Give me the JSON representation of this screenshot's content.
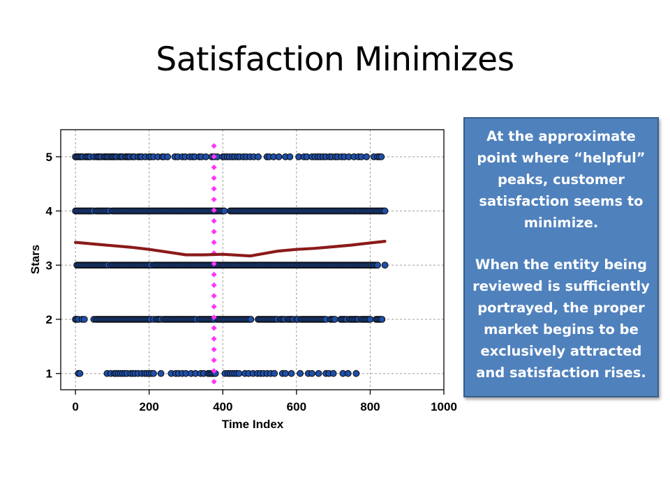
{
  "slide": {
    "title": "Satisfaction Minimizes",
    "callout": {
      "paragraph1": "At the approximate point where “helpful” peaks, customer satisfaction seems to minimize.",
      "paragraph2": "When the entity being reviewed is sufficiently portrayed, the proper market begins to be exclusively attracted and satisfaction rises."
    }
  },
  "colors": {
    "point_fill": "#1f4fa8",
    "point_stroke": "#0a0a0a",
    "smooth_line": "#8b1a1a",
    "marker_line": "#ff33ff",
    "grid": "#9a9a9a",
    "callout_bg": "#4f81bd"
  },
  "chart_data": {
    "type": "scatter",
    "title": "",
    "xlabel": "Time Index",
    "ylabel": "Stars",
    "xlim": [
      -40,
      1000
    ],
    "ylim": [
      0.7,
      5.5
    ],
    "x_ticks": [
      0,
      200,
      400,
      600,
      800,
      1000
    ],
    "y_ticks": [
      1,
      2,
      3,
      4,
      5
    ],
    "grid": true,
    "series": [
      {
        "y": 5,
        "x": [
          0,
          4,
          8,
          12,
          16,
          20,
          28,
          32,
          36,
          40,
          50,
          58,
          62,
          66,
          70,
          78,
          82,
          86,
          90,
          96,
          100,
          104,
          108,
          112,
          120,
          124,
          128,
          136,
          140,
          144,
          148,
          156,
          160,
          170,
          176,
          180,
          190,
          200,
          205,
          212,
          224,
          236,
          240,
          250,
          270,
          278,
          290,
          298,
          310,
          318,
          324,
          336,
          342,
          354,
          370,
          376,
          385,
          400,
          405,
          412,
          418,
          426,
          432,
          440,
          446,
          456,
          464,
          474,
          484,
          496,
          520,
          526,
          538,
          552,
          570,
          582,
          606,
          620,
          628,
          642,
          650,
          658,
          664,
          672,
          680,
          690,
          696,
          706,
          712,
          722,
          730,
          742,
          756,
          768,
          776,
          790,
          810,
          820,
          825,
          830
        ]
      },
      {
        "y": 4,
        "x": [
          0,
          4,
          8,
          12,
          16,
          20,
          24,
          28,
          32,
          36,
          40,
          44,
          48,
          56,
          60,
          64,
          68,
          72,
          76,
          80,
          84,
          88,
          92,
          100,
          104,
          108,
          112,
          116,
          120,
          124,
          128,
          132,
          136,
          140,
          144,
          148,
          152,
          156,
          160,
          164,
          168,
          172,
          176,
          180,
          184,
          188,
          192,
          196,
          200,
          204,
          208,
          212,
          216,
          220,
          224,
          228,
          232,
          236,
          240,
          244,
          248,
          252,
          256,
          260,
          264,
          268,
          272,
          276,
          280,
          284,
          288,
          292,
          296,
          300,
          304,
          308,
          312,
          316,
          320,
          324,
          328,
          332,
          336,
          340,
          344,
          348,
          352,
          356,
          360,
          364,
          368,
          372,
          376,
          380,
          384,
          388,
          392,
          396,
          400,
          404,
          420,
          424,
          428,
          432,
          436,
          440,
          444,
          448,
          452,
          456,
          460,
          464,
          468,
          472,
          476,
          480,
          484,
          488,
          492,
          496,
          500,
          504,
          508,
          512,
          516,
          520,
          524,
          528,
          532,
          536,
          540,
          544,
          548,
          552,
          556,
          560,
          564,
          568,
          572,
          576,
          580,
          584,
          588,
          592,
          596,
          600,
          604,
          608,
          612,
          616,
          620,
          624,
          628,
          632,
          636,
          640,
          644,
          648,
          652,
          656,
          660,
          664,
          668,
          672,
          676,
          680,
          684,
          688,
          692,
          696,
          700,
          704,
          708,
          712,
          716,
          720,
          724,
          728,
          732,
          736,
          740,
          744,
          748,
          752,
          756,
          760,
          764,
          768,
          772,
          776,
          780,
          784,
          788,
          792,
          796,
          800,
          804,
          808,
          812,
          816,
          820,
          824,
          828,
          832,
          836,
          840
        ]
      },
      {
        "y": 3,
        "x": [
          4,
          8,
          12,
          16,
          20,
          24,
          28,
          32,
          36,
          40,
          44,
          48,
          52,
          56,
          60,
          64,
          68,
          72,
          76,
          80,
          84,
          88,
          96,
          100,
          104,
          108,
          112,
          116,
          120,
          124,
          128,
          132,
          136,
          140,
          144,
          148,
          152,
          156,
          160,
          164,
          168,
          172,
          176,
          180,
          184,
          188,
          192,
          196,
          200,
          204,
          212,
          216,
          220,
          224,
          228,
          232,
          236,
          240,
          244,
          248,
          252,
          256,
          260,
          264,
          268,
          272,
          276,
          280,
          284,
          288,
          292,
          296,
          300,
          304,
          308,
          312,
          316,
          320,
          324,
          328,
          332,
          336,
          340,
          344,
          348,
          352,
          356,
          360,
          364,
          368,
          372,
          376,
          380,
          384,
          388,
          392,
          396,
          400,
          404,
          408,
          412,
          416,
          420,
          424,
          428,
          432,
          436,
          440,
          444,
          448,
          452,
          456,
          460,
          464,
          468,
          472,
          476,
          480,
          484,
          488,
          492,
          496,
          500,
          504,
          508,
          512,
          516,
          520,
          524,
          528,
          532,
          536,
          540,
          544,
          548,
          552,
          556,
          560,
          564,
          568,
          572,
          576,
          580,
          584,
          588,
          592,
          596,
          600,
          604,
          608,
          612,
          616,
          620,
          624,
          628,
          632,
          636,
          640,
          644,
          648,
          652,
          656,
          660,
          664,
          668,
          672,
          676,
          680,
          684,
          688,
          692,
          696,
          700,
          704,
          708,
          712,
          716,
          720,
          724,
          728,
          732,
          736,
          740,
          744,
          748,
          752,
          756,
          760,
          764,
          768,
          772,
          776,
          780,
          784,
          788,
          792,
          796,
          800,
          804,
          808,
          812,
          816,
          820,
          840
        ]
      },
      {
        "y": 2,
        "x": [
          0,
          4,
          8,
          18,
          24,
          50,
          56,
          60,
          64,
          68,
          72,
          76,
          80,
          84,
          88,
          92,
          96,
          100,
          104,
          108,
          112,
          116,
          120,
          124,
          128,
          132,
          136,
          140,
          144,
          148,
          152,
          156,
          160,
          164,
          168,
          172,
          176,
          180,
          184,
          188,
          192,
          196,
          200,
          204,
          212,
          220,
          224,
          228,
          232,
          240,
          244,
          248,
          252,
          256,
          260,
          264,
          268,
          272,
          276,
          280,
          284,
          288,
          292,
          296,
          300,
          304,
          308,
          312,
          316,
          320,
          324,
          328,
          336,
          340,
          344,
          348,
          352,
          356,
          360,
          364,
          368,
          372,
          376,
          384,
          388,
          392,
          396,
          400,
          404,
          408,
          412,
          416,
          420,
          424,
          428,
          432,
          436,
          440,
          444,
          448,
          452,
          456,
          460,
          464,
          468,
          472,
          476,
          496,
          500,
          504,
          508,
          512,
          516,
          520,
          524,
          528,
          532,
          536,
          540,
          544,
          548,
          556,
          560,
          564,
          568,
          576,
          580,
          584,
          588,
          592,
          600,
          604,
          612,
          616,
          620,
          624,
          628,
          632,
          636,
          640,
          644,
          648,
          652,
          656,
          660,
          664,
          668,
          672,
          676,
          680,
          692,
          696,
          700,
          704,
          720,
          724,
          728,
          732,
          736,
          744,
          748,
          752,
          756,
          760,
          764,
          768,
          776,
          780,
          784,
          788,
          792,
          796,
          800,
          816,
          820,
          824,
          828,
          832
        ]
      },
      {
        "y": 1,
        "x": [
          8,
          12,
          86,
          96,
          106,
          110,
          116,
          122,
          128,
          134,
          140,
          150,
          156,
          162,
          170,
          180,
          188,
          194,
          200,
          206,
          212,
          232,
          260,
          272,
          280,
          290,
          300,
          314,
          326,
          340,
          348,
          360,
          364,
          368,
          372,
          376,
          380,
          406,
          414,
          420,
          426,
          432,
          438,
          444,
          460,
          470,
          482,
          494,
          502,
          510,
          520,
          530,
          540,
          562,
          570,
          586,
          610,
          632,
          642,
          660,
          680,
          688,
          700,
          726,
          740,
          762
        ]
      }
    ],
    "smooth_line": {
      "x": [
        0,
        50,
        100,
        150,
        200,
        250,
        300,
        350,
        400,
        450,
        475,
        500,
        550,
        600,
        650,
        700,
        750,
        800,
        840
      ],
      "y": [
        3.42,
        3.39,
        3.36,
        3.33,
        3.29,
        3.24,
        3.19,
        3.19,
        3.2,
        3.18,
        3.17,
        3.2,
        3.26,
        3.29,
        3.31,
        3.34,
        3.37,
        3.41,
        3.44
      ]
    },
    "marker_line": {
      "x": 376,
      "y_from": 0.85,
      "y_to": 5.2
    }
  }
}
